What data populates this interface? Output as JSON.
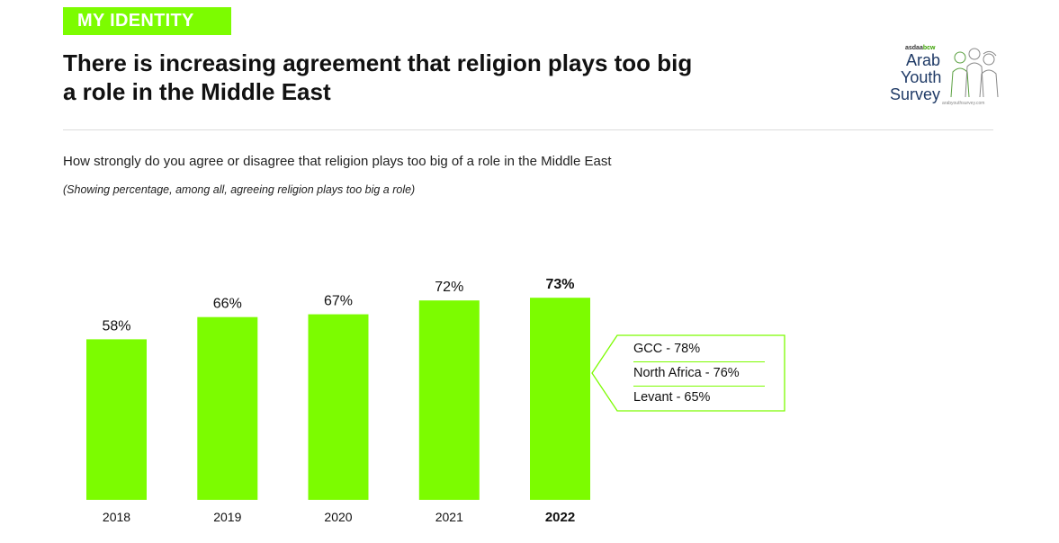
{
  "header": {
    "section_tag": "MY IDENTITY",
    "title": "There is increasing agreement that religion plays too big a role in the Middle East"
  },
  "logo": {
    "sponsor_prefix": "asdaa",
    "sponsor_suffix": "bcw",
    "line1": "Arab",
    "line2": "Youth",
    "line3": "Survey",
    "site": "arabyouthsurvey.com"
  },
  "question": "How strongly do you agree or disagree that religion plays too big of a role in the Middle East",
  "note": "(Showing percentage, among all, agreeing religion plays too big a role)",
  "colors": {
    "accent": "#7cfc00",
    "text": "#111111"
  },
  "chart_data": {
    "type": "bar",
    "categories": [
      "2018",
      "2019",
      "2020",
      "2021",
      "2022"
    ],
    "values": [
      58,
      66,
      67,
      72,
      73
    ],
    "value_labels": [
      "58%",
      "66%",
      "67%",
      "72%",
      "73%"
    ],
    "highlight_category": "2022",
    "title": "",
    "xlabel": "",
    "ylabel": "",
    "ylim": [
      0,
      100
    ],
    "grid": false,
    "callout": {
      "attached_to": "2022",
      "rows": [
        {
          "label": "GCC  - 78%",
          "region": "GCC",
          "value": 78
        },
        {
          "label": "North Africa - 76%",
          "region": "North Africa",
          "value": 76
        },
        {
          "label": "Levant - 65%",
          "region": "Levant",
          "value": 65
        }
      ]
    }
  }
}
